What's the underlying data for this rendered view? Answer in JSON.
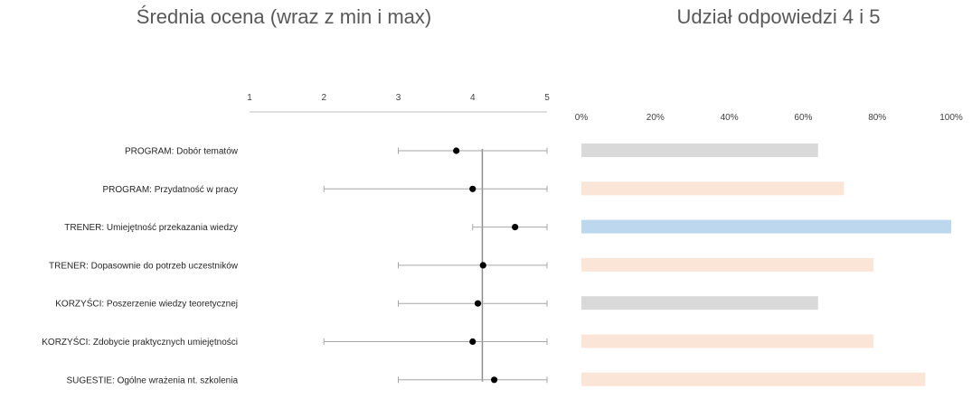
{
  "chart_data": [
    {
      "type": "scatter",
      "title": "Średnia ocena (wraz z min i max)",
      "xlim": [
        1,
        5
      ],
      "x_ticks": [
        "1",
        "2",
        "3",
        "4",
        "5"
      ],
      "grid": false,
      "categories": [
        "PROGRAM: Dobór tematów",
        "PROGRAM: Przydatność w pracy",
        "TRENER: Umiejętność przekazania wiedzy",
        "TRENER: Dopasownie do potrzeb uczestników",
        "KORZYŚCI: Poszerzenie wiedzy teoretycznej",
        "KORZYŚCI: Zdobycie praktycznych umiejętności",
        "SUGESTIE: Ogólne wrażenia nt. szkolenia"
      ],
      "mean": [
        3.78,
        4.0,
        4.57,
        4.14,
        4.07,
        4.0,
        4.29
      ],
      "min": [
        3,
        2,
        4,
        3,
        3,
        2,
        3
      ],
      "max": [
        5,
        5,
        5,
        5,
        5,
        5,
        5
      ],
      "reference_line": 4.13
    },
    {
      "type": "bar",
      "orientation": "horizontal",
      "title": "Udział odpowiedzi 4 i 5",
      "xlim": [
        0,
        100
      ],
      "x_ticks": [
        "0%",
        "20%",
        "40%",
        "60%",
        "80%",
        "100%"
      ],
      "grid": false,
      "values": [
        64,
        71,
        100,
        79,
        64,
        79,
        93
      ],
      "bar_colors": [
        "#d9d9d9",
        "#fbe5d6",
        "#bdd7ee",
        "#fbe5d6",
        "#d9d9d9",
        "#fbe5d6",
        "#fbe5d6"
      ]
    }
  ]
}
